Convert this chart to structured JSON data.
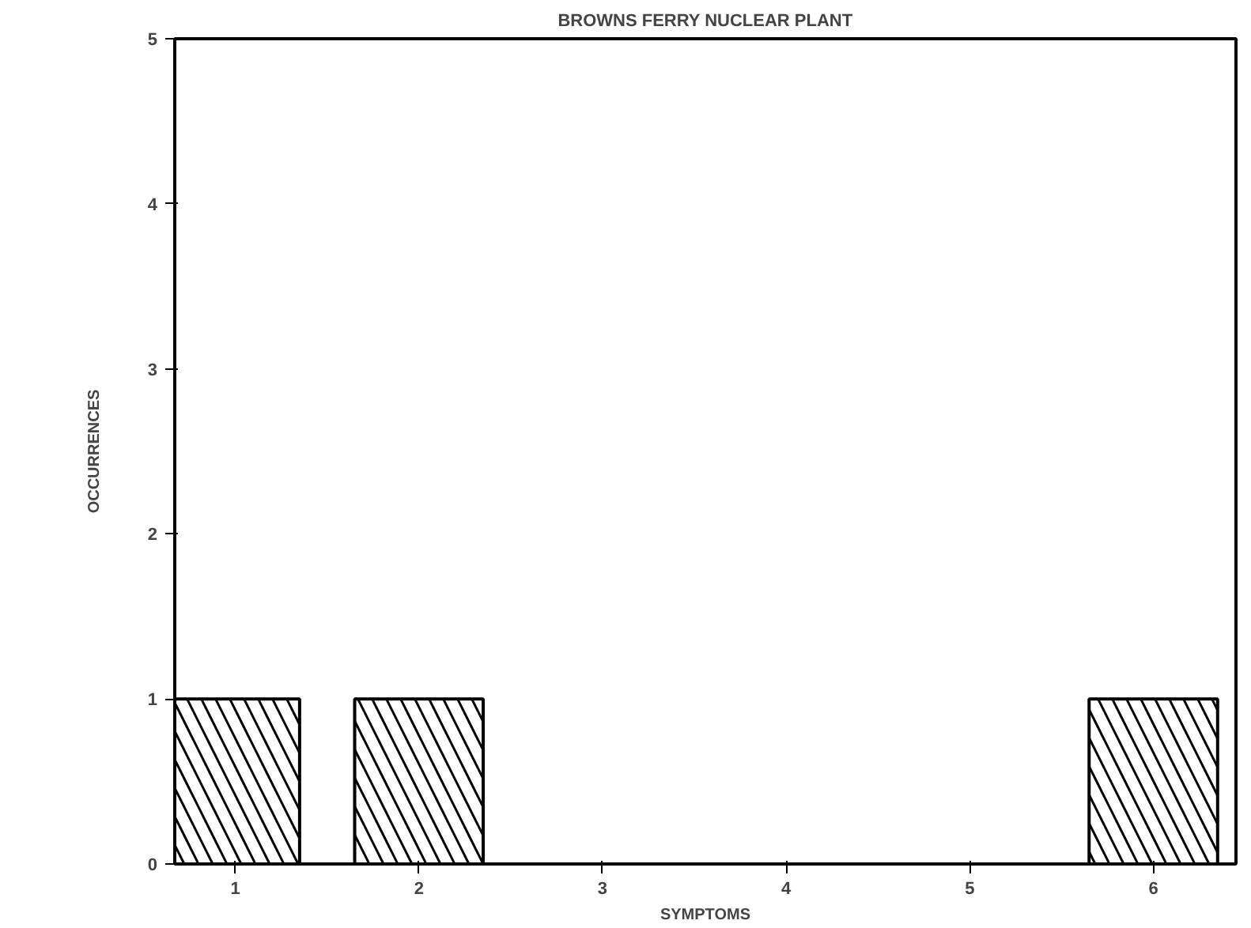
{
  "chart_data": {
    "type": "bar",
    "title": "BROWNS FERRY NUCLEAR PLANT",
    "xlabel": "SYMPTOMS",
    "ylabel": "OCCURRENCES",
    "x": [
      1,
      2,
      3,
      4,
      5,
      6
    ],
    "values": [
      1,
      1,
      0,
      0,
      0,
      1
    ],
    "color": "#000000",
    "xlim": [
      0.67,
      6.45
    ],
    "xticks": [
      1,
      2,
      3,
      4,
      5,
      6
    ],
    "ylim": [
      0,
      5
    ],
    "yticks": [
      0,
      1,
      2,
      3,
      4,
      5
    ],
    "grid": false
  }
}
